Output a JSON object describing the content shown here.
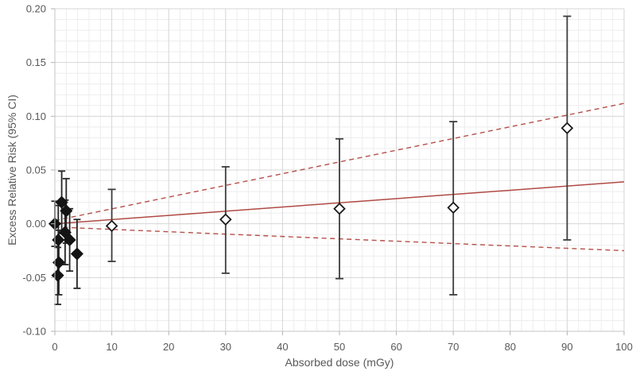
{
  "chart_data": {
    "type": "scatter",
    "title": "",
    "xlabel": "Absorbed dose (mGy)",
    "ylabel": "Excess Relative Risk (95% CI)",
    "xlim": [
      0,
      100
    ],
    "ylim": [
      -0.1,
      0.2
    ],
    "x_major_ticks": [
      0,
      10,
      20,
      30,
      40,
      50,
      60,
      70,
      80,
      90,
      100
    ],
    "x_tick_labels": [
      "0",
      "10",
      "20",
      "30",
      "40",
      "50",
      "60",
      "70",
      "80",
      "90",
      "100"
    ],
    "x_minor_step": 2,
    "y_major_ticks": [
      -0.1,
      -0.05,
      0.0,
      0.05,
      0.1,
      0.15,
      0.2
    ],
    "y_tick_labels": [
      "-0.10",
      "-0.05",
      "0.00",
      "0.05",
      "0.10",
      "0.15",
      "0.20"
    ],
    "y_minor_step": 0.01,
    "grid": {
      "minor_color": "#ededed",
      "major_color": "#d6d6d6",
      "axis_color": "#c4c4c4",
      "tick_color": "#b3b3b3",
      "tick_label_color": "#595959",
      "tick_font_size": 13
    },
    "series": [
      {
        "name": "individual-study-estimates-low-dose",
        "marker": "filled-diamond",
        "marker_color": "#141414",
        "bar_color": "#262626",
        "points": [
          {
            "dose": 0.0,
            "err": 0.0,
            "ci_low": -0.021,
            "ci_high": 0.021
          },
          {
            "dose": 1.2,
            "err": 0.02,
            "ci_low": -0.009,
            "ci_high": 0.049
          },
          {
            "dose": 2.0,
            "err": 0.012,
            "ci_low": -0.018,
            "ci_high": 0.042
          },
          {
            "dose": 1.8,
            "err": -0.008,
            "ci_low": -0.038,
            "ci_high": 0.022
          },
          {
            "dose": 0.6,
            "err": -0.015,
            "ci_low": -0.047,
            "ci_high": 0.017
          },
          {
            "dose": 2.6,
            "err": -0.015,
            "ci_low": -0.044,
            "ci_high": 0.014
          },
          {
            "dose": 3.9,
            "err": -0.028,
            "ci_low": -0.06,
            "ci_high": 0.004
          },
          {
            "dose": 0.7,
            "err": -0.036,
            "ci_low": -0.066,
            "ci_high": -0.006
          },
          {
            "dose": 0.5,
            "err": -0.048,
            "ci_low": -0.075,
            "ci_high": -0.022
          }
        ]
      },
      {
        "name": "dose-category-estimates",
        "marker": "open-diamond",
        "marker_color": "#1a1a1a",
        "bar_color": "#3d3d3d",
        "points": [
          {
            "dose": 10,
            "err": -0.002,
            "ci_low": -0.035,
            "ci_high": 0.032
          },
          {
            "dose": 30,
            "err": 0.004,
            "ci_low": -0.046,
            "ci_high": 0.053
          },
          {
            "dose": 50,
            "err": 0.014,
            "ci_low": -0.051,
            "ci_high": 0.079
          },
          {
            "dose": 70,
            "err": 0.015,
            "ci_low": -0.066,
            "ci_high": 0.095
          },
          {
            "dose": 90,
            "err": 0.089,
            "ci_low": -0.015,
            "ci_high": 0.193
          }
        ]
      }
    ],
    "fit_lines": [
      {
        "name": "linear-fit-line",
        "style": "solid",
        "color": "#b04a44",
        "x": [
          0,
          100
        ],
        "y": [
          0.0,
          0.039
        ]
      },
      {
        "name": "upper-95ci-line",
        "style": "dashed",
        "color": "#b5504a",
        "x": [
          0,
          100
        ],
        "y": [
          0.003,
          0.112
        ]
      },
      {
        "name": "lower-95ci-line",
        "style": "dashed",
        "color": "#b5504a",
        "x": [
          0,
          100
        ],
        "y": [
          -0.003,
          -0.025
        ]
      }
    ],
    "legend": {
      "visible": false
    }
  }
}
